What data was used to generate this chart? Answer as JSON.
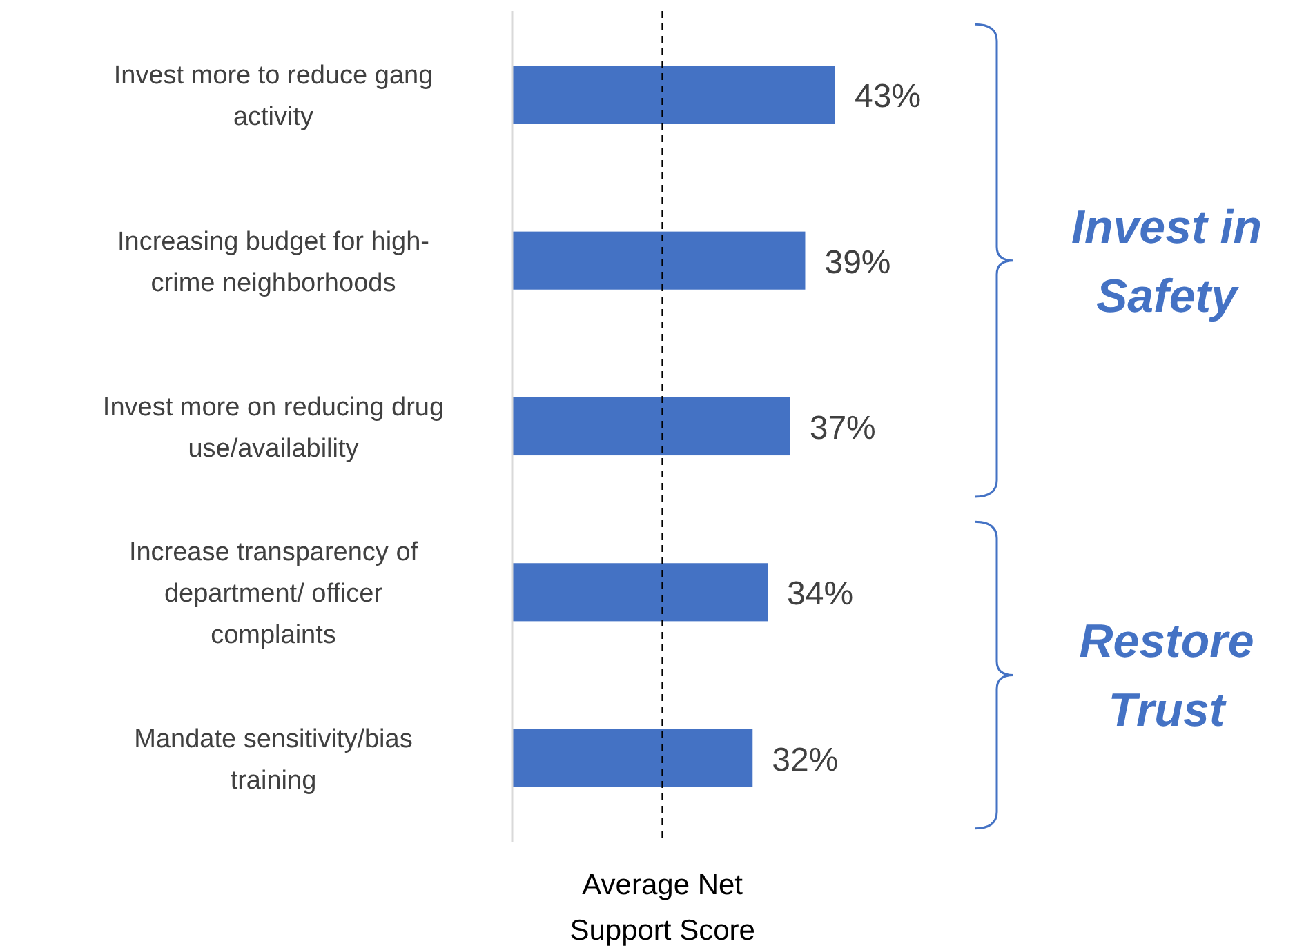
{
  "chart_data": {
    "type": "bar",
    "orientation": "horizontal",
    "categories": [
      "Invest more to reduce gang activity",
      "Increasing budget for high-crime neighborhoods",
      "Invest more on reducing drug use/availability",
      "Increase transparency of department/ officer complaints",
      "Mandate sensitivity/bias training"
    ],
    "values": [
      43,
      39,
      37,
      34,
      32
    ],
    "value_labels": [
      "43%",
      "39%",
      "37%",
      "34%",
      "32%"
    ],
    "color": "#4472c4",
    "tick_labels": "y",
    "ref_lines": [
      {
        "axis": "x",
        "value": 20,
        "label": "Average Net Support Score",
        "line_style": "dashed",
        "color": "#000000"
      }
    ],
    "annotations": [
      "Invest in Safety",
      "Restore Trust"
    ],
    "relative": false
  }
}
